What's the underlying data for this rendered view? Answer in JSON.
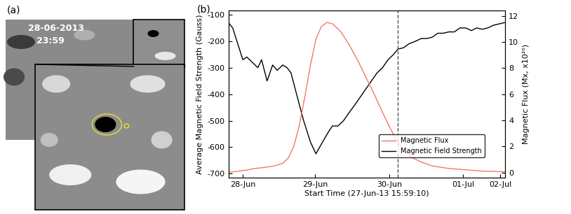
{
  "chart_data": {
    "type": "line",
    "title": "(b)",
    "x_label": "Start Time (27-Jun-13 15:59:10)",
    "y_label": "Average Magnetic Field Strength (Gauss)",
    "y2_label": "Magnetic Flux (Mx, x10²⁰)",
    "xlim": [
      3,
      93.2
    ],
    "xticks": [
      {
        "value": 7.7,
        "label": "28-Jun"
      },
      {
        "value": 31.2,
        "label": "29-Jun"
      },
      {
        "value": 55.4,
        "label": "30-Jun"
      },
      {
        "value": 79.5,
        "label": "01-Jul"
      },
      {
        "value": 91.6,
        "label": "02-Jul"
      }
    ],
    "ylim": [
      -715,
      -85
    ],
    "yticks": [
      -700,
      -600,
      -500,
      -400,
      -300,
      -200,
      -100
    ],
    "y2lim": [
      -0.4,
      12.4
    ],
    "y2ticks": [
      0,
      2,
      4,
      6,
      8,
      10,
      12
    ],
    "legend": "lower right",
    "series": [
      {
        "name": "Magnetic Flux",
        "color": "#f07a68",
        "axis": "y2",
        "x": [
          3.0,
          8.1,
          11.7,
          15.3,
          18.0,
          20.7,
          22.5,
          24.3,
          26.1,
          27.9,
          29.7,
          31.5,
          33.3,
          35.1,
          36.9,
          39.6,
          42.3,
          45.1,
          47.8,
          50.5,
          53.2,
          55.9,
          58.2,
          60.4,
          63.1,
          65.8,
          69.4,
          74.8,
          80.3,
          85.7,
          92.9
        ],
        "values": [
          0.0,
          0.15,
          0.3,
          0.4,
          0.5,
          0.7,
          1.1,
          2.0,
          3.6,
          5.8,
          8.2,
          10.2,
          11.2,
          11.5,
          11.4,
          10.8,
          9.8,
          8.6,
          7.3,
          6.0,
          4.6,
          3.3,
          2.3,
          1.6,
          1.1,
          0.8,
          0.5,
          0.3,
          0.2,
          0.1,
          0.05
        ]
      },
      {
        "name": "Magnetic Field Strength",
        "color": "#000000",
        "axis": "y",
        "x": [
          3.0,
          4.4,
          7.7,
          9.0,
          10.8,
          12.6,
          13.8,
          15.6,
          17.4,
          18.9,
          20.7,
          22.1,
          23.4,
          25.2,
          27.5,
          29.7,
          31.5,
          33.7,
          35.7,
          36.9,
          38.7,
          40.5,
          42.3,
          44.2,
          46.0,
          47.8,
          49.6,
          51.4,
          53.2,
          55.0,
          56.8,
          58.2,
          60.0,
          61.8,
          64.0,
          65.8,
          67.6,
          69.4,
          71.2,
          73.0,
          74.8,
          76.6,
          78.4,
          80.3,
          82.1,
          83.9,
          85.7,
          87.5,
          89.3,
          91.1,
          92.9
        ],
        "values": [
          -130,
          -150,
          -270,
          -260,
          -280,
          -300,
          -270,
          -350,
          -290,
          -310,
          -290,
          -300,
          -320,
          -400,
          -500,
          -580,
          -625,
          -580,
          -540,
          -520,
          -520,
          -500,
          -470,
          -440,
          -410,
          -380,
          -350,
          -320,
          -300,
          -270,
          -250,
          -230,
          -225,
          -210,
          -200,
          -190,
          -190,
          -185,
          -170,
          -170,
          -165,
          -165,
          -150,
          -150,
          -160,
          -150,
          -155,
          -150,
          -140,
          -135,
          -130
        ]
      }
    ],
    "vline": {
      "x": 58.2,
      "color": "#555555",
      "line_style": "dashed"
    }
  },
  "image_panel": {
    "label": "(a)",
    "date": "28-06-2013",
    "time": "23:59"
  }
}
